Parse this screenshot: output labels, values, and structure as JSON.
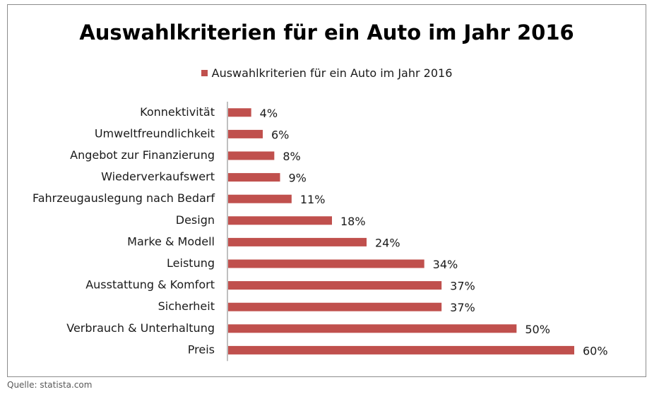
{
  "chart_data": {
    "type": "bar",
    "orientation": "horizontal",
    "title": "Auswahlkriterien für ein Auto im Jahr 2016",
    "categories": [
      "Konnektivität",
      "Umweltfreundlichkeit",
      "Angebot zur Finanzierung",
      "Wiederverkaufswert",
      "Fahrzeugauslegung nach Bedarf",
      "Design",
      "Marke & Modell",
      "Leistung",
      "Ausstattung & Komfort",
      "Sicherheit",
      "Verbrauch & Unterhaltung",
      "Preis"
    ],
    "series": [
      {
        "name": "Auswahlkriterien für ein Auto im Jahr 2016",
        "values": [
          4,
          6,
          8,
          9,
          11,
          18,
          24,
          34,
          37,
          37,
          50,
          60
        ],
        "data_labels": [
          "4%",
          "6%",
          "8%",
          "9%",
          "11%",
          "18%",
          "24%",
          "34%",
          "37%",
          "37%",
          "50%",
          "60%"
        ],
        "color": "#c0504d"
      }
    ],
    "xlim": [
      0,
      60
    ],
    "unit": "%",
    "grid": false,
    "legend_position": "top-center"
  },
  "source": "Quelle: statista.com",
  "colors": {
    "bar": "#c0504d",
    "axis": "#808080",
    "frame": "#8c8c8c"
  }
}
